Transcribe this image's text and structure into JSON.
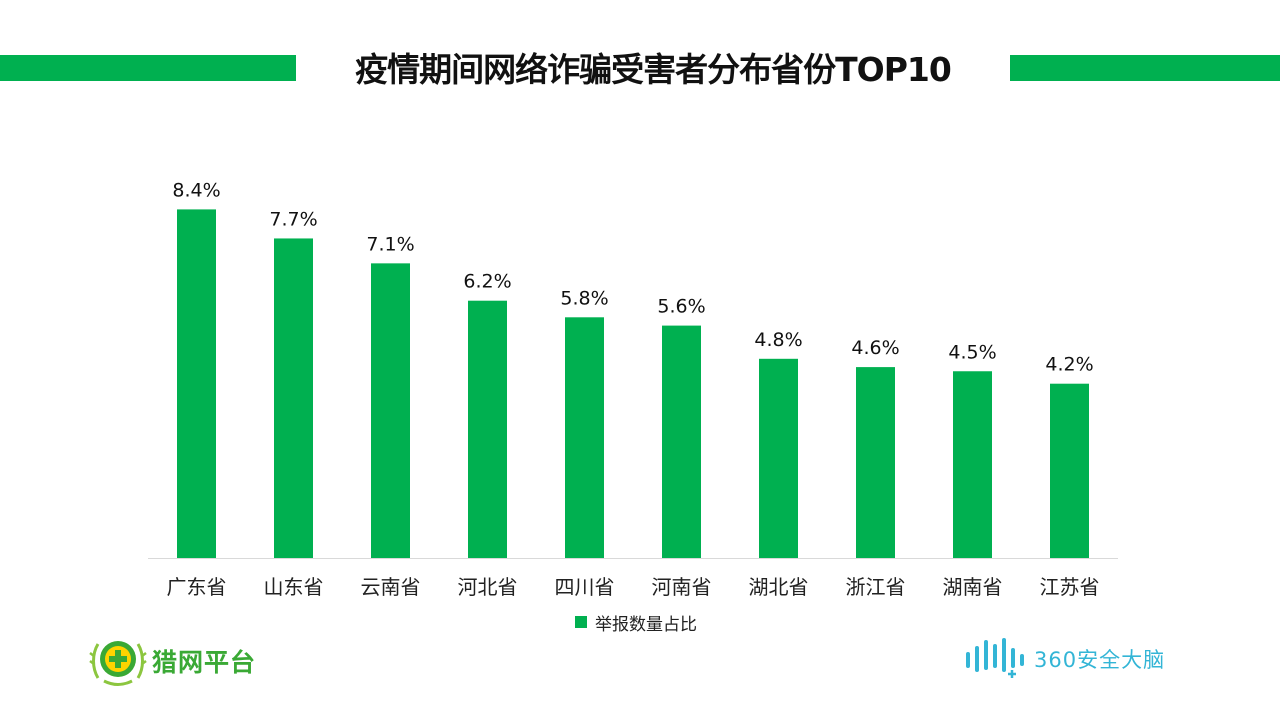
{
  "header": {
    "title": "疫情期间网络诈骗受害者分布省份TOP10"
  },
  "colors": {
    "accent": "#00b050",
    "left_logo": "#3aa935",
    "right_logo": "#33b5d6"
  },
  "chart_data": {
    "type": "bar",
    "categories": [
      "广东省",
      "山东省",
      "云南省",
      "河北省",
      "四川省",
      "河南省",
      "湖北省",
      "浙江省",
      "湖南省",
      "江苏省"
    ],
    "series": [
      {
        "name": "举报数量占比",
        "values": [
          8.4,
          7.7,
          7.1,
          6.2,
          5.8,
          5.6,
          4.8,
          4.6,
          4.5,
          4.2
        ],
        "labels": [
          "8.4%",
          "7.7%",
          "7.1%",
          "6.2%",
          "5.8%",
          "5.6%",
          "4.8%",
          "4.6%",
          "4.5%",
          "4.2%"
        ]
      }
    ],
    "title": "疫情期间网络诈骗受害者分布省份TOP10",
    "xlabel": "",
    "ylabel": "",
    "ylim": [
      0,
      9
    ],
    "grid": false,
    "legend_position": "bottom"
  },
  "legend": {
    "label": "举报数量占比"
  },
  "logos": {
    "left": {
      "text": "猎网平台",
      "icon": "shield-plus-icon"
    },
    "right": {
      "text": "360安全大脑",
      "icon": "sound-wave-icon"
    }
  }
}
